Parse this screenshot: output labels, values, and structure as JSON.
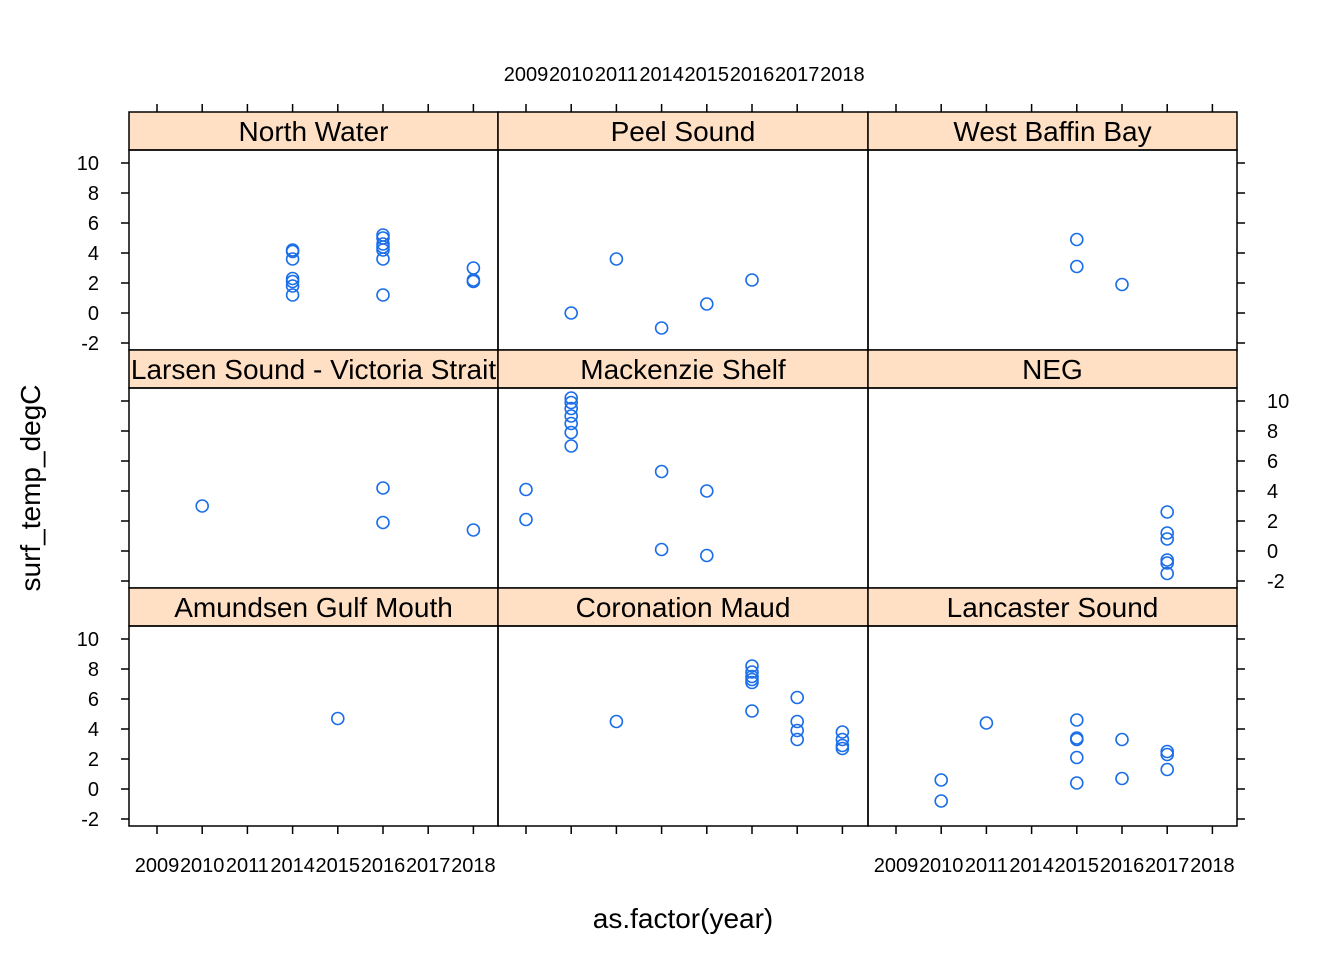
{
  "chart_data": {
    "type": "scatter",
    "xlabel": "as.factor(year)",
    "ylabel": "surf_temp_degC",
    "x_levels": [
      "2009",
      "2010",
      "2011",
      "2014",
      "2015",
      "2016",
      "2017",
      "2018"
    ],
    "ylim": [
      -2.5,
      11
    ],
    "y_ticks": [
      -2,
      0,
      2,
      4,
      6,
      8,
      10
    ],
    "point_color": "#1a6ee8",
    "strip_color": "#ffe0c4",
    "panels": [
      {
        "name": "North Water",
        "points": [
          [
            "2014",
            4.2
          ],
          [
            "2014",
            4.1
          ],
          [
            "2014",
            3.6
          ],
          [
            "2014",
            2.3
          ],
          [
            "2014",
            2.1
          ],
          [
            "2014",
            1.8
          ],
          [
            "2014",
            1.2
          ],
          [
            "2016",
            5.2
          ],
          [
            "2016",
            5.0
          ],
          [
            "2016",
            4.6
          ],
          [
            "2016",
            4.4
          ],
          [
            "2016",
            4.2
          ],
          [
            "2016",
            3.6
          ],
          [
            "2016",
            1.2
          ],
          [
            "2018",
            3.0
          ],
          [
            "2018",
            2.2
          ],
          [
            "2018",
            2.1
          ]
        ]
      },
      {
        "name": "Peel Sound",
        "points": [
          [
            "2010",
            0.0
          ],
          [
            "2011",
            3.6
          ],
          [
            "2014",
            -1.0
          ],
          [
            "2015",
            0.6
          ],
          [
            "2016",
            2.2
          ]
        ]
      },
      {
        "name": "West Baffin Bay",
        "points": [
          [
            "2015",
            4.9
          ],
          [
            "2015",
            3.1
          ],
          [
            "2016",
            1.9
          ]
        ]
      },
      {
        "name": "Larsen Sound - Victoria Strait",
        "points": [
          [
            "2010",
            3.0
          ],
          [
            "2016",
            4.2
          ],
          [
            "2016",
            1.9
          ],
          [
            "2018",
            1.4
          ]
        ]
      },
      {
        "name": "Mackenzie Shelf",
        "points": [
          [
            "2009",
            4.1
          ],
          [
            "2009",
            2.1
          ],
          [
            "2010",
            10.2
          ],
          [
            "2010",
            9.9
          ],
          [
            "2010",
            9.5
          ],
          [
            "2010",
            9.0
          ],
          [
            "2010",
            8.5
          ],
          [
            "2010",
            7.9
          ],
          [
            "2010",
            7.0
          ],
          [
            "2014",
            5.3
          ],
          [
            "2014",
            0.1
          ],
          [
            "2015",
            4.0
          ],
          [
            "2015",
            -0.3
          ]
        ]
      },
      {
        "name": "NEG",
        "points": [
          [
            "2017",
            2.6
          ],
          [
            "2017",
            1.2
          ],
          [
            "2017",
            0.8
          ],
          [
            "2017",
            -0.6
          ],
          [
            "2017",
            -0.8
          ],
          [
            "2017",
            -1.5
          ]
        ]
      },
      {
        "name": "Amundsen Gulf Mouth",
        "points": [
          [
            "2015",
            4.7
          ]
        ]
      },
      {
        "name": "Coronation Maud",
        "points": [
          [
            "2011",
            4.5
          ],
          [
            "2016",
            8.2
          ],
          [
            "2016",
            7.8
          ],
          [
            "2016",
            7.5
          ],
          [
            "2016",
            7.3
          ],
          [
            "2016",
            7.1
          ],
          [
            "2016",
            5.2
          ],
          [
            "2017",
            6.1
          ],
          [
            "2017",
            4.5
          ],
          [
            "2017",
            3.9
          ],
          [
            "2017",
            3.3
          ],
          [
            "2018",
            3.8
          ],
          [
            "2018",
            3.3
          ],
          [
            "2018",
            2.9
          ],
          [
            "2018",
            2.7
          ]
        ]
      },
      {
        "name": "Lancaster Sound",
        "points": [
          [
            "2010",
            0.6
          ],
          [
            "2010",
            -0.8
          ],
          [
            "2011",
            4.4
          ],
          [
            "2015",
            4.6
          ],
          [
            "2015",
            3.4
          ],
          [
            "2015",
            3.3
          ],
          [
            "2015",
            2.1
          ],
          [
            "2015",
            0.4
          ],
          [
            "2016",
            3.3
          ],
          [
            "2016",
            0.7
          ],
          [
            "2017",
            2.5
          ],
          [
            "2017",
            2.3
          ],
          [
            "2017",
            1.3
          ]
        ]
      }
    ]
  }
}
